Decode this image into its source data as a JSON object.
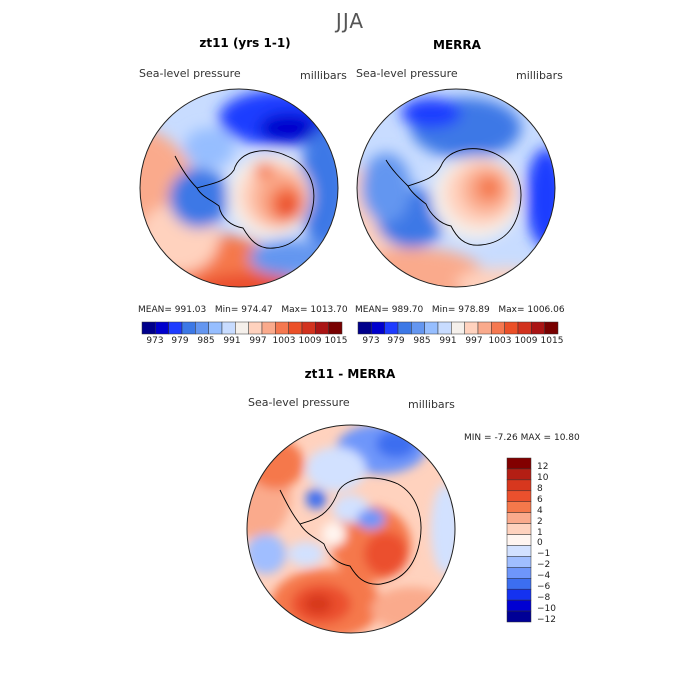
{
  "figure": {
    "season": "JJA",
    "units": "millibars",
    "variable": "Sea-level pressure",
    "colors": {
      "abs_scale": [
        "#00008B",
        "#0000CD",
        "#1E3CFF",
        "#3C78E6",
        "#6496F0",
        "#96BEFF",
        "#C8DCFF",
        "#F5F0EB",
        "#FFD2BE",
        "#FAAA8C",
        "#F57850",
        "#EB5028",
        "#D2321E",
        "#AA1414",
        "#780000"
      ],
      "diff_scale": [
        "#000096",
        "#0000D2",
        "#1432F0",
        "#3C6EF0",
        "#6E96FA",
        "#A0BEFF",
        "#D2E1FF",
        "#FFF5F0",
        "#FFD2BE",
        "#FAAA8C",
        "#F5784B",
        "#EB502D",
        "#D7371E",
        "#B41E14",
        "#820000"
      ]
    }
  },
  "panels": [
    {
      "id": "model",
      "title": "zt11 (yrs 1-1)",
      "subtitle_left": "Sea-level pressure",
      "subtitle_right": "millibars",
      "stats": {
        "mean_label": "MEAN=",
        "mean": "991.03",
        "min_label": "Min=",
        "min": "974.47",
        "max_label": "Max=",
        "max": "1013.70"
      }
    },
    {
      "id": "obs",
      "title": "MERRA",
      "subtitle_left": "Sea-level pressure",
      "subtitle_right": "millibars",
      "stats": {
        "mean_label": "MEAN=",
        "mean": "989.70",
        "min_label": "Min=",
        "min": "978.89",
        "max_label": "Max=",
        "max": "1006.06"
      }
    }
  ],
  "abs_colorbar": {
    "tick_labels": [
      "973",
      "979",
      "985",
      "991",
      "997",
      "1003",
      "1009",
      "1015"
    ]
  },
  "diff_panel": {
    "title": "zt11 - MERRA",
    "subtitle_left": "Sea-level pressure",
    "subtitle_right": "millibars",
    "min_label": "MIN =",
    "min": "-7.26",
    "max_label": "MAX =",
    "max": "10.80",
    "colorbar_labels": [
      "12",
      "10",
      "8",
      "6",
      "4",
      "2",
      "1",
      "0",
      "−1",
      "−2",
      "−4",
      "−6",
      "−8",
      "−10",
      "−12"
    ]
  }
}
